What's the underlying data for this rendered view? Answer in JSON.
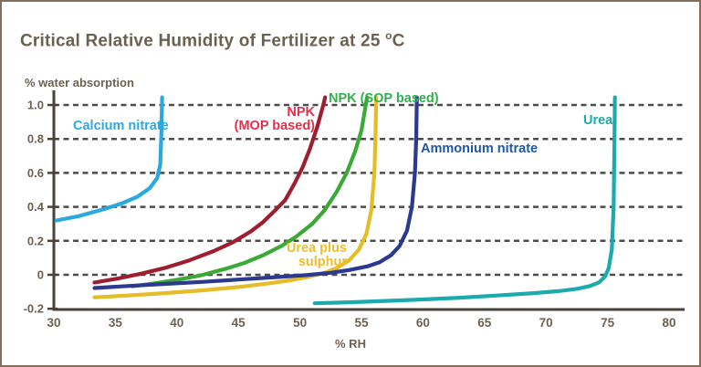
{
  "title": {
    "prefix": "Critical Relative Humidity of Fertilizer at 25 ",
    "sup": "o",
    "suffix": "C"
  },
  "chart_data": {
    "type": "line",
    "title": "Critical Relative Humidity of Fertilizer at 25 °C",
    "xlabel": "% RH",
    "ylabel": "% water absorption",
    "xlim": [
      30,
      80
    ],
    "ylim": [
      -0.2,
      1.0
    ],
    "grid": "dashed horizontal at 0 to 1.0 step 0.2",
    "legend_position": "inline labels next to curves",
    "xticks": [
      "30",
      "35",
      "40",
      "45",
      "50",
      "55",
      "60",
      "65",
      "70",
      "75",
      "80"
    ],
    "yticks": [
      {
        "label": "1.0",
        "value": 1.0,
        "gridline": true
      },
      {
        "label": "0.8",
        "value": 0.8,
        "gridline": true
      },
      {
        "label": "0.6",
        "value": 0.6,
        "gridline": true
      },
      {
        "label": "0.4",
        "value": 0.4,
        "gridline": true
      },
      {
        "label": "0.2",
        "value": 0.2,
        "gridline": true
      },
      {
        "label": "0",
        "value": 0.0,
        "gridline": true
      },
      {
        "label": "-0.2",
        "value": -0.2,
        "gridline": false
      }
    ],
    "colors": {
      "frame_border": "#826f5d",
      "title_text": "#6c6150",
      "axis_text": "#6c6150",
      "axis_line": "#4a4238",
      "gridline": "#4c4c4c"
    },
    "series": [
      {
        "name": "calcium-nitrate",
        "label": "Calcium nitrate",
        "label_lines": [
          "Calcium nitrate"
        ],
        "color": "#2aa9e1",
        "label_color": "#2aa9e1",
        "critical_rh_approx": 38.7,
        "points": [
          [
            30.2,
            0.32
          ],
          [
            32,
            0.345
          ],
          [
            34,
            0.385
          ],
          [
            35.5,
            0.42
          ],
          [
            36.8,
            0.46
          ],
          [
            37.8,
            0.51
          ],
          [
            38.4,
            0.57
          ],
          [
            38.65,
            0.65
          ],
          [
            38.75,
            0.85
          ],
          [
            38.8,
            1.045
          ]
        ]
      },
      {
        "name": "npk-mop-based",
        "label": "NPK (MOP based)",
        "label_lines": [
          "NPK",
          "(MOP based)"
        ],
        "color": "#a01d30",
        "label_color": "#e62e4b",
        "critical_rh_approx": 52,
        "points": [
          [
            33.3,
            -0.045
          ],
          [
            35,
            -0.025
          ],
          [
            37,
            0.005
          ],
          [
            39,
            0.04
          ],
          [
            41,
            0.085
          ],
          [
            43,
            0.14
          ],
          [
            44.5,
            0.19
          ],
          [
            46,
            0.255
          ],
          [
            47,
            0.31
          ],
          [
            48,
            0.38
          ],
          [
            48.8,
            0.44
          ],
          [
            49.5,
            0.53
          ],
          [
            50.2,
            0.63
          ],
          [
            50.8,
            0.74
          ],
          [
            51.4,
            0.87
          ],
          [
            51.9,
            1.0
          ],
          [
            52.05,
            1.045
          ]
        ]
      },
      {
        "name": "npk-sop-based",
        "label": "NPK (SOP based)",
        "label_lines": [
          "NPK (SOP based)"
        ],
        "color": "#3aaa35",
        "label_color": "#2fb04a",
        "critical_rh_approx": 55.4,
        "points": [
          [
            36.4,
            -0.068
          ],
          [
            38,
            -0.052
          ],
          [
            40,
            -0.03
          ],
          [
            42,
            -0.002
          ],
          [
            44,
            0.036
          ],
          [
            45.5,
            0.07
          ],
          [
            47,
            0.115
          ],
          [
            48.5,
            0.17
          ],
          [
            49.7,
            0.225
          ],
          [
            51,
            0.3
          ],
          [
            52,
            0.38
          ],
          [
            53,
            0.49
          ],
          [
            53.8,
            0.6
          ],
          [
            54.5,
            0.73
          ],
          [
            55,
            0.85
          ],
          [
            55.35,
            1.0
          ],
          [
            55.45,
            1.045
          ]
        ]
      },
      {
        "name": "urea-plus-sulphur",
        "label": "Urea plus sulphur",
        "label_lines": [
          "Urea plus",
          "sulphur"
        ],
        "color": "#e4bd28",
        "label_color": "#efbe2c",
        "critical_rh_approx": 56.2,
        "points": [
          [
            33.3,
            -0.133
          ],
          [
            36,
            -0.122
          ],
          [
            39,
            -0.108
          ],
          [
            42,
            -0.092
          ],
          [
            45,
            -0.072
          ],
          [
            47,
            -0.055
          ],
          [
            49,
            -0.035
          ],
          [
            50.5,
            -0.015
          ],
          [
            52,
            0.012
          ],
          [
            53,
            0.04
          ],
          [
            54,
            0.085
          ],
          [
            54.8,
            0.15
          ],
          [
            55.4,
            0.24
          ],
          [
            55.8,
            0.38
          ],
          [
            56.05,
            0.6
          ],
          [
            56.15,
            0.85
          ],
          [
            56.2,
            1.045
          ]
        ]
      },
      {
        "name": "ammonium-nitrate",
        "label": "Ammonium nitrate",
        "label_lines": [
          "Ammonium nitrate"
        ],
        "color": "#2b3990",
        "label_color": "#2157a8",
        "critical_rh_approx": 59.5,
        "points": [
          [
            33.3,
            -0.078
          ],
          [
            36,
            -0.066
          ],
          [
            39,
            -0.054
          ],
          [
            42,
            -0.042
          ],
          [
            45,
            -0.028
          ],
          [
            48,
            -0.014
          ],
          [
            50.5,
            -0.002
          ],
          [
            52.5,
            0.012
          ],
          [
            54,
            0.028
          ],
          [
            55.5,
            0.05
          ],
          [
            56.5,
            0.075
          ],
          [
            57.4,
            0.115
          ],
          [
            58.1,
            0.17
          ],
          [
            58.7,
            0.26
          ],
          [
            59.1,
            0.4
          ],
          [
            59.35,
            0.6
          ],
          [
            59.45,
            0.8
          ],
          [
            59.5,
            1.045
          ]
        ]
      },
      {
        "name": "urea",
        "label": "Urea",
        "label_lines": [
          "Urea"
        ],
        "color": "#1caaae",
        "label_color": "#1caaae",
        "critical_rh_approx": 75.5,
        "points": [
          [
            51.2,
            -0.168
          ],
          [
            54,
            -0.162
          ],
          [
            57,
            -0.154
          ],
          [
            60,
            -0.145
          ],
          [
            63,
            -0.135
          ],
          [
            66,
            -0.122
          ],
          [
            69,
            -0.108
          ],
          [
            71,
            -0.096
          ],
          [
            72.5,
            -0.083
          ],
          [
            73.5,
            -0.068
          ],
          [
            74.3,
            -0.045
          ],
          [
            74.8,
            -0.01
          ],
          [
            75.1,
            0.04
          ],
          [
            75.35,
            0.15
          ],
          [
            75.5,
            0.4
          ],
          [
            75.55,
            0.7
          ],
          [
            75.6,
            1.045
          ]
        ]
      }
    ]
  }
}
